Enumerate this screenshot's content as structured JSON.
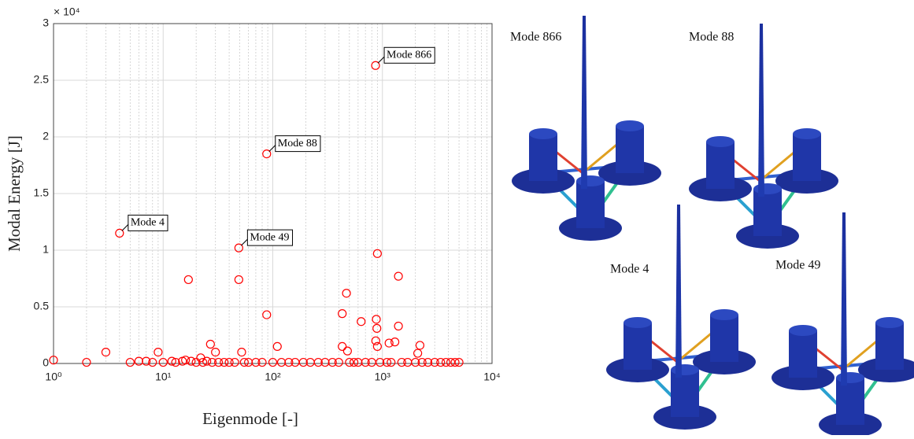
{
  "chart_data": {
    "type": "scatter",
    "x_label": "Eigenmode [-]",
    "y_label": "Modal Energy [J]",
    "y_multiplier": "× 10⁴",
    "xscale": "log",
    "grid": true,
    "minor_grid": true,
    "marker_color": "#ff0000",
    "xlim": [
      1,
      10000
    ],
    "xticks": [
      {
        "value": 1,
        "label": "10⁰"
      },
      {
        "value": 10,
        "label": "10¹"
      },
      {
        "value": 100,
        "label": "10²"
      },
      {
        "value": 1000,
        "label": "10³"
      },
      {
        "value": 10000,
        "label": "10⁴"
      }
    ],
    "ylim": [
      0,
      3
    ],
    "yticks": [
      0,
      0.5,
      1,
      1.5,
      2,
      2.5,
      3
    ],
    "x": [
      1,
      2,
      3,
      4,
      5,
      6,
      7,
      8,
      9,
      10,
      12,
      13,
      15,
      16,
      17,
      18,
      20,
      22,
      23,
      25,
      27,
      28,
      30,
      32,
      36,
      40,
      45,
      49,
      49,
      52,
      55,
      60,
      70,
      80,
      88,
      88,
      100,
      110,
      120,
      140,
      160,
      190,
      220,
      260,
      300,
      350,
      400,
      430,
      430,
      470,
      480,
      500,
      550,
      600,
      640,
      700,
      800,
      866,
      870,
      880,
      890,
      900,
      900,
      950,
      1100,
      1150,
      1200,
      1300,
      1400,
      1400,
      1500,
      1700,
      2000,
      2100,
      2200,
      2300,
      2600,
      3000,
      3400,
      3800,
      4200,
      4600,
      5000
    ],
    "y": [
      0.03,
      0.01,
      0.1,
      1.15,
      0.01,
      0.02,
      0.02,
      0.01,
      0.1,
      0.01,
      0.02,
      0.01,
      0.02,
      0.03,
      0.74,
      0.02,
      0.01,
      0.05,
      0.01,
      0.02,
      0.17,
      0.01,
      0.1,
      0.01,
      0.01,
      0.01,
      0.01,
      1.02,
      0.74,
      0.1,
      0.01,
      0.01,
      0.01,
      0.01,
      1.85,
      0.43,
      0.01,
      0.15,
      0.01,
      0.01,
      0.01,
      0.01,
      0.01,
      0.01,
      0.01,
      0.01,
      0.01,
      0.44,
      0.15,
      0.62,
      0.11,
      0.01,
      0.01,
      0.01,
      0.37,
      0.01,
      0.01,
      2.63,
      0.2,
      0.39,
      0.31,
      0.97,
      0.15,
      0.01,
      0.01,
      0.18,
      0.01,
      0.19,
      0.77,
      0.33,
      0.01,
      0.01,
      0.01,
      0.09,
      0.16,
      0.01,
      0.01,
      0.01,
      0.01,
      0.01,
      0.01,
      0.01,
      0.01
    ],
    "annotations": [
      {
        "text": "Mode 866",
        "x": 866,
        "y": 2.63
      },
      {
        "text": "Mode 88",
        "x": 88,
        "y": 1.85
      },
      {
        "text": "Mode 4",
        "x": 4,
        "y": 1.15
      },
      {
        "text": "Mode 49",
        "x": 49,
        "y": 1.02
      }
    ]
  },
  "mode_figures": [
    "Mode 866",
    "Mode 88",
    "Mode 4",
    "Mode 49"
  ]
}
